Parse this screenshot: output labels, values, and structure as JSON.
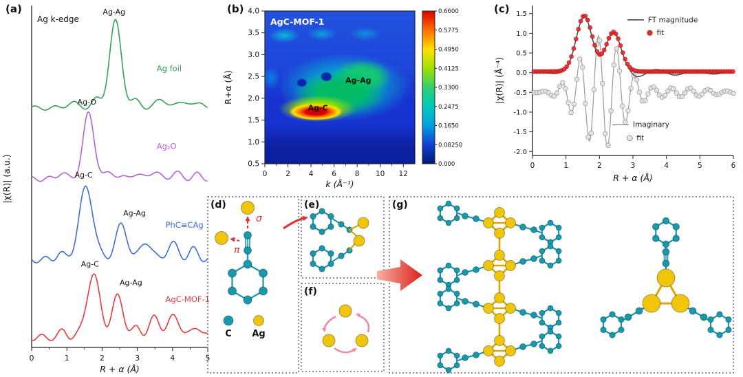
{
  "chart_data": [
    {
      "panel": "a",
      "tag": "(a)",
      "type": "line",
      "title": "Ag k-edge",
      "xlabel": "R + α (Å)",
      "ylabel": "|χ(R)| (a.u.)",
      "xlim": [
        0,
        5
      ],
      "xticks": [
        0,
        1,
        2,
        3,
        4,
        5
      ],
      "series": [
        {
          "name": "Ag foil",
          "color": "#33a257",
          "offset": 3.38,
          "peaks": [
            [
              2.38,
              1.22,
              0.17
            ],
            [
              1.15,
              0.07,
              0.18
            ],
            [
              1.85,
              0.12,
              0.13
            ],
            [
              2.95,
              0.1,
              0.14
            ],
            [
              3.7,
              0.12,
              0.17
            ],
            [
              4.35,
              0.1,
              0.16
            ],
            [
              4.85,
              0.07,
              0.12
            ]
          ],
          "ripple": [
            0.03,
            11,
            0.5
          ],
          "name_pos": [
            3.55,
            0.52
          ],
          "peak_labels": [
            {
              "text": "Ag-Ag",
              "x": 2.02,
              "y": 1.32
            }
          ]
        },
        {
          "name": "Ag₂O",
          "color": "#b263d6",
          "offset": 2.38,
          "peaks": [
            [
              1.62,
              0.92,
              0.16
            ],
            [
              0.85,
              0.09,
              0.12
            ],
            [
              2.25,
              0.1,
              0.13
            ],
            [
              2.9,
              0.07,
              0.14
            ],
            [
              3.45,
              0.1,
              0.15
            ],
            [
              4.1,
              0.08,
              0.15
            ],
            [
              4.7,
              0.06,
              0.12
            ]
          ],
          "ripple": [
            0.035,
            12,
            1.8
          ],
          "name_pos": [
            3.55,
            0.42
          ],
          "peak_labels": [
            {
              "text": "Ag-O",
              "x": 1.3,
              "y": 1.05
            }
          ]
        },
        {
          "name": "PhC≡CAg",
          "color": "#3b6fd0",
          "offset": 1.24,
          "peaks": [
            [
              1.55,
              1.02,
              0.2
            ],
            [
              2.55,
              0.48,
              0.17
            ],
            [
              3.25,
              0.26,
              0.15
            ],
            [
              4.0,
              0.22,
              0.16
            ],
            [
              4.6,
              0.14,
              0.13
            ],
            [
              0.8,
              0.09,
              0.11
            ]
          ],
          "ripple": [
            0.045,
            12,
            3.1
          ],
          "name_pos": [
            3.8,
            0.45
          ],
          "peak_labels": [
            {
              "text": "Ag-C",
              "x": 1.22,
              "y": 1.16
            },
            {
              "text": "Ag-Ag",
              "x": 2.6,
              "y": 0.62
            }
          ]
        },
        {
          "name": "AgC-MOF-1",
          "color": "#e8393d",
          "offset": 0.14,
          "peaks": [
            [
              1.75,
              0.88,
              0.19
            ],
            [
              2.45,
              0.58,
              0.16
            ],
            [
              3.0,
              0.14,
              0.12
            ],
            [
              3.5,
              0.28,
              0.15
            ],
            [
              4.05,
              0.3,
              0.17
            ],
            [
              4.7,
              0.16,
              0.13
            ],
            [
              0.9,
              0.09,
              0.11
            ]
          ],
          "ripple": [
            0.045,
            12,
            4.4
          ],
          "name_pos": [
            3.8,
            0.5
          ],
          "peak_labels": [
            {
              "text": "Ag-C",
              "x": 1.4,
              "y": 1.0
            },
            {
              "text": "Ag-Ag",
              "x": 2.5,
              "y": 0.74
            }
          ]
        }
      ]
    },
    {
      "panel": "b",
      "tag": "(b)",
      "type": "heatmap",
      "title": "AgC-MOF-1",
      "xlabel": "k (Å⁻¹)",
      "ylabel": "R+α (Å)",
      "xlim": [
        0,
        13
      ],
      "ylim": [
        0.5,
        4.0
      ],
      "xticks": [
        0,
        2,
        4,
        6,
        8,
        10,
        12
      ],
      "yticks": [
        "0.5",
        "1.0",
        "1.5",
        "2.0",
        "2.5",
        "3.0",
        "3.5",
        "4.0"
      ],
      "colorbar_ticks": [
        "0.6600",
        "0.5775",
        "0.4950",
        "0.4125",
        "0.3300",
        "0.2475",
        "0.1650",
        "0.08250",
        "0.000"
      ],
      "features": [
        {
          "text": "Ag-C",
          "k": 4.6,
          "r": 1.72,
          "intensity_max": 0.66
        },
        {
          "text": "Ag-Ag",
          "k": 8.1,
          "r": 2.35,
          "intensity_max": 0.41
        }
      ]
    },
    {
      "panel": "c",
      "tag": "(c)",
      "type": "line",
      "xlabel": "R + α (Å)",
      "ylabel": "|χ(R)| (Å⁻⁴)",
      "xlim": [
        0,
        6
      ],
      "ylim": [
        -2.1,
        1.6
      ],
      "xticks": [
        0,
        1,
        2,
        3,
        4,
        5,
        6
      ],
      "yticks": [
        "1.5",
        "1.0",
        "0.5",
        "0.0",
        "-0.5",
        "-1.0",
        "-1.5",
        "-2.0"
      ],
      "series": [
        {
          "name": "FT magnitude",
          "color": "#4a4a4a",
          "kind": "magnitude",
          "peaks": [
            [
              1.55,
              1.42,
              0.24
            ],
            [
              2.42,
              1.0,
              0.23
            ]
          ],
          "wiggle": [
            0.12,
            5.5,
            2.9
          ]
        },
        {
          "name": "fit",
          "color": "#e8262a",
          "kind": "magnitude-fit",
          "marker": true
        },
        {
          "name": "Imaginary",
          "color": "#9a9a9a",
          "kind": "imaginary",
          "base": -0.5,
          "env": [
            1.45,
            2.05,
            0.62
          ],
          "freq": 11.5,
          "phase": -2.2
        },
        {
          "name": "fit",
          "color": "#e4e4e4",
          "kind": "imaginary-fit",
          "marker": true
        }
      ],
      "legend": [
        {
          "text": "FT magnitude",
          "marker": "line",
          "color": "#4a4a4a",
          "x": 3.45,
          "y": 1.28
        },
        {
          "text": "fit",
          "marker": "dot",
          "color": "#e8262a",
          "x": 3.75,
          "y": 0.95
        },
        {
          "text": "Imaginary",
          "marker": "line",
          "color": "#9a9a9a",
          "x": 3.0,
          "y": -1.38
        },
        {
          "text": "fit",
          "marker": "dot",
          "color": "#e4e4e4",
          "x": 3.15,
          "y": -1.72
        }
      ]
    }
  ],
  "molecular": {
    "d": {
      "tag": "(d)",
      "sigma_label": "σ",
      "pi_label": "π",
      "legend_carbon": "C",
      "legend_silver": "Ag"
    },
    "e": {
      "tag": "(e)"
    },
    "f": {
      "tag": "(f)"
    },
    "g": {
      "tag": "(g)"
    },
    "atom_colors": {
      "carbon": "#1799ad",
      "silver": "#f0c60a"
    },
    "arrow_color": "#e23030",
    "cycle_arrow_color": "#ef8a9a"
  }
}
